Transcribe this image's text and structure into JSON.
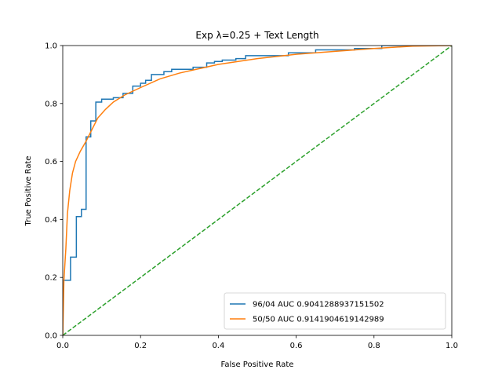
{
  "chart_data": {
    "type": "line",
    "title": "Exp λ=0.25 + Text Length",
    "xlabel": "False Positive Rate",
    "ylabel": "True Positive Rate",
    "xlim": [
      0,
      1
    ],
    "ylim": [
      0,
      1
    ],
    "xticks": [
      "0.0",
      "0.2",
      "0.4",
      "0.6",
      "0.8",
      "1.0"
    ],
    "yticks": [
      "0.0",
      "0.2",
      "0.4",
      "0.6",
      "0.8",
      "1.0"
    ],
    "grid": false,
    "legend_position": "lower-right",
    "series": [
      {
        "name": "96/04 AUC 0.9041288937151502",
        "color": "#1f77b4",
        "style": "step",
        "points": [
          [
            0.0,
            0.0
          ],
          [
            0.0,
            0.19
          ],
          [
            0.02,
            0.19
          ],
          [
            0.02,
            0.27
          ],
          [
            0.035,
            0.27
          ],
          [
            0.035,
            0.41
          ],
          [
            0.048,
            0.41
          ],
          [
            0.048,
            0.435
          ],
          [
            0.06,
            0.435
          ],
          [
            0.06,
            0.685
          ],
          [
            0.072,
            0.685
          ],
          [
            0.072,
            0.74
          ],
          [
            0.085,
            0.74
          ],
          [
            0.085,
            0.805
          ],
          [
            0.1,
            0.805
          ],
          [
            0.1,
            0.815
          ],
          [
            0.13,
            0.815
          ],
          [
            0.13,
            0.82
          ],
          [
            0.155,
            0.82
          ],
          [
            0.155,
            0.835
          ],
          [
            0.18,
            0.835
          ],
          [
            0.18,
            0.86
          ],
          [
            0.2,
            0.86
          ],
          [
            0.2,
            0.87
          ],
          [
            0.213,
            0.87
          ],
          [
            0.213,
            0.88
          ],
          [
            0.228,
            0.88
          ],
          [
            0.228,
            0.9
          ],
          [
            0.26,
            0.9
          ],
          [
            0.26,
            0.91
          ],
          [
            0.28,
            0.91
          ],
          [
            0.28,
            0.918
          ],
          [
            0.335,
            0.918
          ],
          [
            0.335,
            0.925
          ],
          [
            0.37,
            0.925
          ],
          [
            0.37,
            0.94
          ],
          [
            0.39,
            0.94
          ],
          [
            0.39,
            0.945
          ],
          [
            0.41,
            0.945
          ],
          [
            0.41,
            0.95
          ],
          [
            0.445,
            0.95
          ],
          [
            0.445,
            0.955
          ],
          [
            0.47,
            0.955
          ],
          [
            0.47,
            0.965
          ],
          [
            0.58,
            0.965
          ],
          [
            0.58,
            0.975
          ],
          [
            0.65,
            0.975
          ],
          [
            0.65,
            0.985
          ],
          [
            0.75,
            0.985
          ],
          [
            0.75,
            0.99
          ],
          [
            0.82,
            0.99
          ],
          [
            0.82,
            1.0
          ],
          [
            1.0,
            1.0
          ]
        ]
      },
      {
        "name": "50/50 AUC 0.9141904619142989",
        "color": "#ff7f0e",
        "style": "line",
        "points": [
          [
            0.0,
            0.0
          ],
          [
            0.003,
            0.19
          ],
          [
            0.008,
            0.3
          ],
          [
            0.012,
            0.42
          ],
          [
            0.018,
            0.5
          ],
          [
            0.025,
            0.56
          ],
          [
            0.033,
            0.6
          ],
          [
            0.045,
            0.635
          ],
          [
            0.06,
            0.67
          ],
          [
            0.075,
            0.71
          ],
          [
            0.09,
            0.75
          ],
          [
            0.11,
            0.78
          ],
          [
            0.13,
            0.805
          ],
          [
            0.16,
            0.83
          ],
          [
            0.2,
            0.855
          ],
          [
            0.25,
            0.885
          ],
          [
            0.3,
            0.905
          ],
          [
            0.35,
            0.92
          ],
          [
            0.4,
            0.935
          ],
          [
            0.5,
            0.955
          ],
          [
            0.6,
            0.97
          ],
          [
            0.7,
            0.98
          ],
          [
            0.8,
            0.99
          ],
          [
            0.9,
            0.998
          ],
          [
            1.0,
            1.0
          ]
        ]
      },
      {
        "name": "",
        "color": "#2ca02c",
        "style": "dashed",
        "points": [
          [
            0.0,
            0.0
          ],
          [
            1.0,
            1.0
          ]
        ]
      }
    ]
  }
}
